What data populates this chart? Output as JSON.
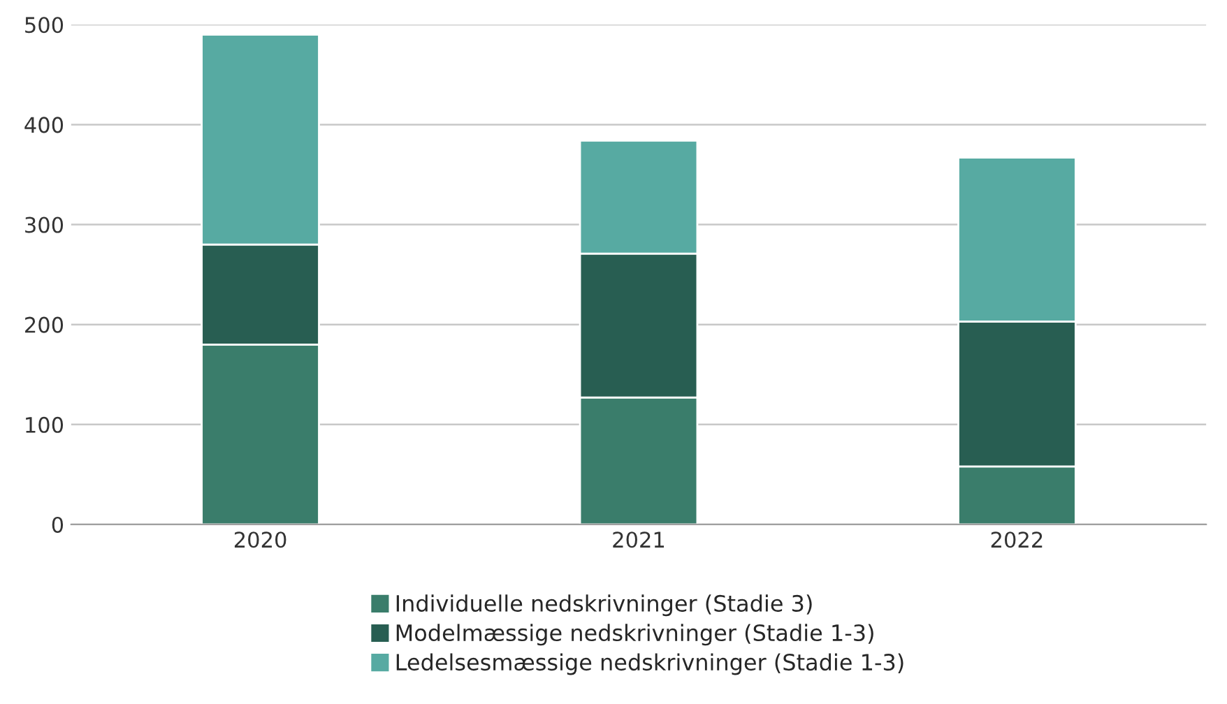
{
  "chart_data": {
    "type": "bar",
    "stacked": true,
    "categories": [
      "2020",
      "2021",
      "2022"
    ],
    "series": [
      {
        "name": "Individuelle nedskrivninger (Stadie 3)",
        "color": "#3a7d6b",
        "values": [
          180,
          127,
          58
        ]
      },
      {
        "name": "Modelmæssige nedskrivninger (Stadie 1-3)",
        "color": "#285e52",
        "values": [
          100,
          144,
          145
        ]
      },
      {
        "name": "Ledelsesmæssige nedskrivninger (Stadie 1-3)",
        "color": "#57aaa2",
        "values": [
          210,
          113,
          164
        ]
      }
    ],
    "ylim": [
      0,
      500
    ],
    "yticks": [
      0,
      100,
      200,
      300,
      400,
      500
    ],
    "grid": "y",
    "legend": "bottom"
  }
}
